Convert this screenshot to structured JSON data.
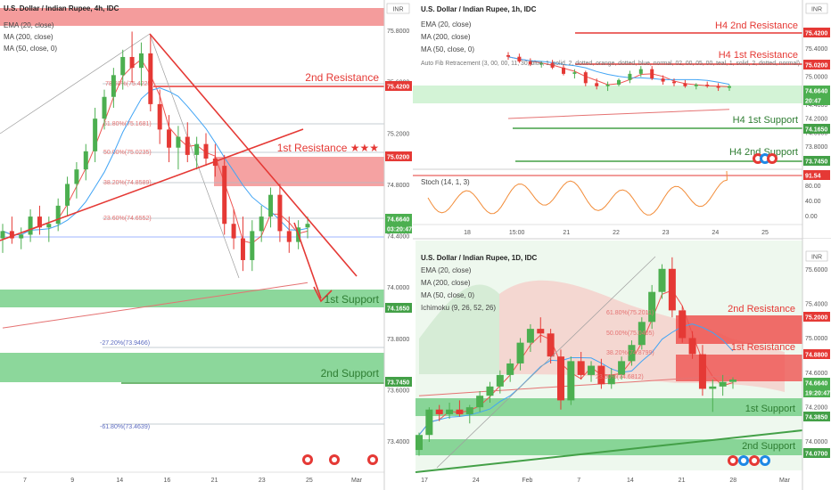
{
  "colors": {
    "up": "#4caf50",
    "down": "#e53935",
    "resistance_line": "#e53935",
    "support_line": "#43a047",
    "resistance_zone": "#f28b8b",
    "support_zone": "#66c97a",
    "ema": "#ef5350",
    "ma200": "#e57373",
    "ma50": "#42a5f5",
    "fib": "#90a4ae",
    "stoch": "#f28c38"
  },
  "left": {
    "header": {
      "title": "U.S. Dollar / Indian Rupee, 4h, IDC",
      "ind1": "EMA (20, close)",
      "ind2": "MA (200, close)",
      "ind3": "MA (50, close, 0)"
    },
    "currency_badge": "INR",
    "levels": {
      "r2": "2nd Resistance",
      "r1": "1st Resistance ★★★",
      "s1": "1st Support",
      "s2": "2nd Support"
    },
    "fib": [
      "78.60%(75.4225)",
      "61.80%(75.1681)",
      "50.00%(75.0235)",
      "38.20%(74.8589)",
      "23.60%(74.6552)",
      "-27.20%(73.9466)",
      "-61.80%(73.4639)"
    ],
    "price_ticks": [
      "75.8000",
      "75.6000",
      "75.2000",
      "74.8000",
      "74.4000",
      "74.0000",
      "73.8000",
      "73.6000",
      "73.4000"
    ],
    "price_tags": {
      "r2": "75.4200",
      "r1": "75.0200",
      "last": "74.6640",
      "timer": "03:20:47",
      "s1": "74.1650",
      "s2": "73.7450"
    },
    "x_ticks": [
      "7",
      "9",
      "14",
      "16",
      "21",
      "23",
      "25",
      "Mar"
    ]
  },
  "tr": {
    "header": {
      "title": "U.S. Dollar / Indian Rupee, 1h, IDC",
      "ind1": "EMA (20, close)",
      "ind2": "MA (200, close)",
      "ind3": "MA (50, close, 0)"
    },
    "overlay_text": "Auto Fib Retracement (3, 00, 00, 11, 30, blue, 1, solid, 2, dotted, orange, dotted, blue, normal, 02, 00, 05, 00, teal, 1, solid, 2, dotted, normal)",
    "currency_badge": "INR",
    "levels": {
      "r2": "H4 2nd Resistance",
      "r1": "H4 1st Resistance",
      "s1": "H4 1st Support",
      "s2": "H4 2nd Support"
    },
    "price_ticks": [
      "75.6000",
      "75.4000",
      "75.2000",
      "75.0000",
      "74.8000",
      "74.4000",
      "74.2000",
      "74.0000",
      "73.8000"
    ],
    "price_tags": {
      "r2": "75.4200",
      "r1": "75.0200",
      "last": "74.6640",
      "timer": "20:47",
      "s1": "74.1650",
      "s2": "73.7450"
    },
    "stoch": {
      "label": "Stoch (14, 1, 3)",
      "tag": "91.54",
      "ticks": [
        "80.00",
        "40.00",
        "0.00"
      ]
    },
    "x_ticks": [
      "18",
      "15:00",
      "21",
      "22",
      "23",
      "24",
      "25"
    ]
  },
  "br": {
    "header": {
      "title": "U.S. Dollar / Indian Rupee, 1D, IDC",
      "ind1": "EMA (20, close)",
      "ind2": "MA (200, close)",
      "ind3": "MA (50, close, 0)",
      "ind4": "Ichimoku (9, 26, 52, 26)"
    },
    "currency_badge": "INR",
    "levels": {
      "r2": "2nd Resistance",
      "r1": "1st Resistance",
      "s1": "1st Support",
      "s2": "2nd Support"
    },
    "fib": [
      "61.80%(75.2011)",
      "50.00%(75.0405)",
      "38.20%(74.8799)",
      "23.60%(74.6812)"
    ],
    "price_ticks": [
      "75.6000",
      "75.4000",
      "75.0000",
      "74.6000",
      "74.2000",
      "74.0000"
    ],
    "price_tags": {
      "r2": "75.2000",
      "r1": "74.8800",
      "last": "74.6640",
      "timer": "19:20:47",
      "s1": "74.3850",
      "s2": "74.0700"
    },
    "x_ticks": [
      "17",
      "24",
      "Feb",
      "7",
      "14",
      "21",
      "28",
      "Mar"
    ]
  },
  "chart_data": [
    {
      "type": "candlestick",
      "title": "U.S. Dollar / Indian Rupee, 4h, IDC",
      "ylim": [
        73.33,
        75.85
      ],
      "x_ticks": [
        "7",
        "9",
        "14",
        "16",
        "21",
        "23",
        "25",
        "Mar"
      ],
      "ohlc": [
        [
          74.58,
          74.66,
          74.5,
          74.62
        ],
        [
          74.62,
          74.7,
          74.55,
          74.58
        ],
        [
          74.58,
          74.64,
          74.52,
          74.6
        ],
        [
          74.6,
          74.74,
          74.56,
          74.7
        ],
        [
          74.7,
          74.76,
          74.6,
          74.64
        ],
        [
          74.64,
          74.7,
          74.56,
          74.66
        ],
        [
          74.66,
          74.8,
          74.62,
          74.76
        ],
        [
          74.76,
          74.92,
          74.7,
          74.88
        ],
        [
          74.88,
          75.0,
          74.8,
          74.96
        ],
        [
          74.96,
          75.1,
          74.9,
          75.06
        ],
        [
          75.06,
          75.3,
          75.0,
          75.24
        ],
        [
          75.24,
          75.4,
          75.18,
          75.36
        ],
        [
          75.36,
          75.52,
          75.3,
          75.48
        ],
        [
          75.48,
          75.62,
          75.4,
          75.58
        ],
        [
          75.58,
          75.72,
          75.44,
          75.52
        ],
        [
          75.52,
          75.66,
          75.42,
          75.6
        ],
        [
          75.6,
          75.7,
          75.28,
          75.32
        ],
        [
          75.32,
          75.4,
          75.1,
          75.18
        ],
        [
          75.18,
          75.26,
          75.0,
          75.08
        ],
        [
          75.08,
          75.2,
          74.96,
          75.14
        ],
        [
          75.14,
          75.22,
          75.0,
          75.04
        ],
        [
          75.04,
          75.14,
          74.96,
          75.1
        ],
        [
          75.1,
          75.16,
          74.98,
          75.02
        ],
        [
          75.02,
          75.1,
          74.92,
          74.98
        ],
        [
          74.98,
          75.04,
          74.6,
          74.66
        ],
        [
          74.66,
          74.74,
          74.52,
          74.58
        ],
        [
          74.58,
          74.7,
          74.4,
          74.46
        ],
        [
          74.46,
          74.68,
          74.4,
          74.62
        ],
        [
          74.62,
          74.76,
          74.56,
          74.7
        ],
        [
          74.7,
          74.86,
          74.64,
          74.82
        ],
        [
          74.82,
          74.88,
          74.56,
          74.62
        ],
        [
          74.62,
          74.7,
          74.5,
          74.56
        ],
        [
          74.56,
          74.68,
          74.52,
          74.64
        ],
        [
          74.64,
          74.7,
          74.58,
          74.66
        ]
      ],
      "levels": {
        "2nd Resistance": 75.42,
        "1st Resistance": 75.02,
        "1st Support": 74.165,
        "2nd Support": 73.745
      }
    },
    {
      "type": "candlestick",
      "title": "U.S. Dollar / Indian Rupee, 1h, IDC",
      "ylim": [
        73.7,
        75.65
      ],
      "x_ticks": [
        "18",
        "15:00",
        "21",
        "22",
        "23",
        "24",
        "25"
      ],
      "ohlc": [
        [
          75.1,
          75.14,
          75.04,
          75.08
        ],
        [
          75.08,
          75.12,
          75.0,
          75.02
        ],
        [
          75.02,
          75.06,
          74.96,
          74.98
        ],
        [
          74.98,
          75.02,
          74.94,
          75.0
        ],
        [
          75.0,
          75.04,
          74.92,
          74.94
        ],
        [
          74.94,
          74.98,
          74.84,
          74.86
        ],
        [
          74.86,
          74.92,
          74.8,
          74.88
        ],
        [
          74.88,
          74.9,
          74.7,
          74.74
        ],
        [
          74.74,
          74.8,
          74.66,
          74.7
        ],
        [
          74.7,
          74.76,
          74.64,
          74.72
        ],
        [
          74.72,
          74.8,
          74.7,
          74.78
        ],
        [
          74.78,
          74.9,
          74.74,
          74.86
        ],
        [
          74.86,
          74.96,
          74.82,
          74.92
        ],
        [
          74.92,
          74.96,
          74.78,
          74.8
        ],
        [
          74.8,
          74.84,
          74.72,
          74.76
        ],
        [
          74.76,
          74.8,
          74.7,
          74.74
        ],
        [
          74.74,
          74.78,
          74.68,
          74.7
        ],
        [
          74.7,
          74.74,
          74.66,
          74.72
        ],
        [
          74.72,
          74.76,
          74.68,
          74.7
        ],
        [
          74.7,
          74.74,
          74.64,
          74.68
        ],
        [
          74.68,
          74.72,
          74.64,
          74.7
        ]
      ],
      "levels": {
        "H4 2nd Resistance": 75.42,
        "H4 1st Resistance": 75.02,
        "H4 1st Support": 74.165,
        "H4 2nd Support": 73.745
      },
      "stoch": {
        "label": "Stoch (14, 1, 3)",
        "last": 91.54,
        "ylim": [
          0,
          100
        ]
      }
    },
    {
      "type": "candlestick",
      "title": "U.S. Dollar / Indian Rupee, 1D, IDC",
      "ylim": [
        73.95,
        75.85
      ],
      "x_ticks": [
        "17",
        "24",
        "Feb",
        "7",
        "14",
        "21",
        "28",
        "Mar"
      ],
      "ohlc": [
        [
          74.05,
          74.2,
          74.0,
          74.18
        ],
        [
          74.18,
          74.42,
          74.12,
          74.4
        ],
        [
          74.4,
          74.44,
          74.3,
          74.36
        ],
        [
          74.36,
          74.46,
          74.32,
          74.4
        ],
        [
          74.4,
          74.48,
          74.34,
          74.36
        ],
        [
          74.36,
          74.44,
          74.28,
          74.42
        ],
        [
          74.42,
          74.56,
          74.38,
          74.52
        ],
        [
          74.52,
          74.64,
          74.46,
          74.6
        ],
        [
          74.6,
          74.74,
          74.54,
          74.7
        ],
        [
          74.7,
          74.84,
          74.64,
          74.8
        ],
        [
          74.8,
          75.02,
          74.74,
          74.98
        ],
        [
          74.98,
          75.14,
          74.9,
          75.1
        ],
        [
          75.1,
          75.2,
          74.98,
          75.06
        ],
        [
          75.06,
          75.1,
          74.8,
          74.86
        ],
        [
          74.86,
          74.92,
          74.4,
          74.48
        ],
        [
          74.48,
          74.86,
          74.44,
          74.82
        ],
        [
          74.82,
          74.9,
          74.66,
          74.7
        ],
        [
          74.7,
          74.82,
          74.64,
          74.78
        ],
        [
          74.78,
          74.84,
          74.58,
          74.62
        ],
        [
          74.62,
          74.76,
          74.58,
          74.7
        ],
        [
          74.7,
          74.86,
          74.66,
          74.82
        ],
        [
          74.82,
          75.0,
          74.78,
          74.96
        ],
        [
          74.96,
          75.2,
          74.92,
          75.16
        ],
        [
          75.16,
          75.48,
          75.1,
          75.42
        ],
        [
          75.42,
          75.66,
          75.36,
          75.62
        ],
        [
          75.62,
          75.72,
          75.2,
          75.26
        ],
        [
          75.26,
          75.3,
          74.98,
          75.02
        ],
        [
          75.02,
          75.08,
          74.84,
          74.88
        ],
        [
          74.88,
          74.96,
          74.52,
          74.58
        ],
        [
          74.58,
          74.66,
          74.38,
          74.6
        ],
        [
          74.6,
          74.7,
          74.52,
          74.64
        ],
        [
          74.64,
          74.68,
          74.58,
          74.66
        ]
      ],
      "levels": {
        "2nd Resistance": 75.2,
        "1st Resistance": 74.88,
        "1st Support": 74.385,
        "2nd Support": 74.07
      }
    }
  ]
}
